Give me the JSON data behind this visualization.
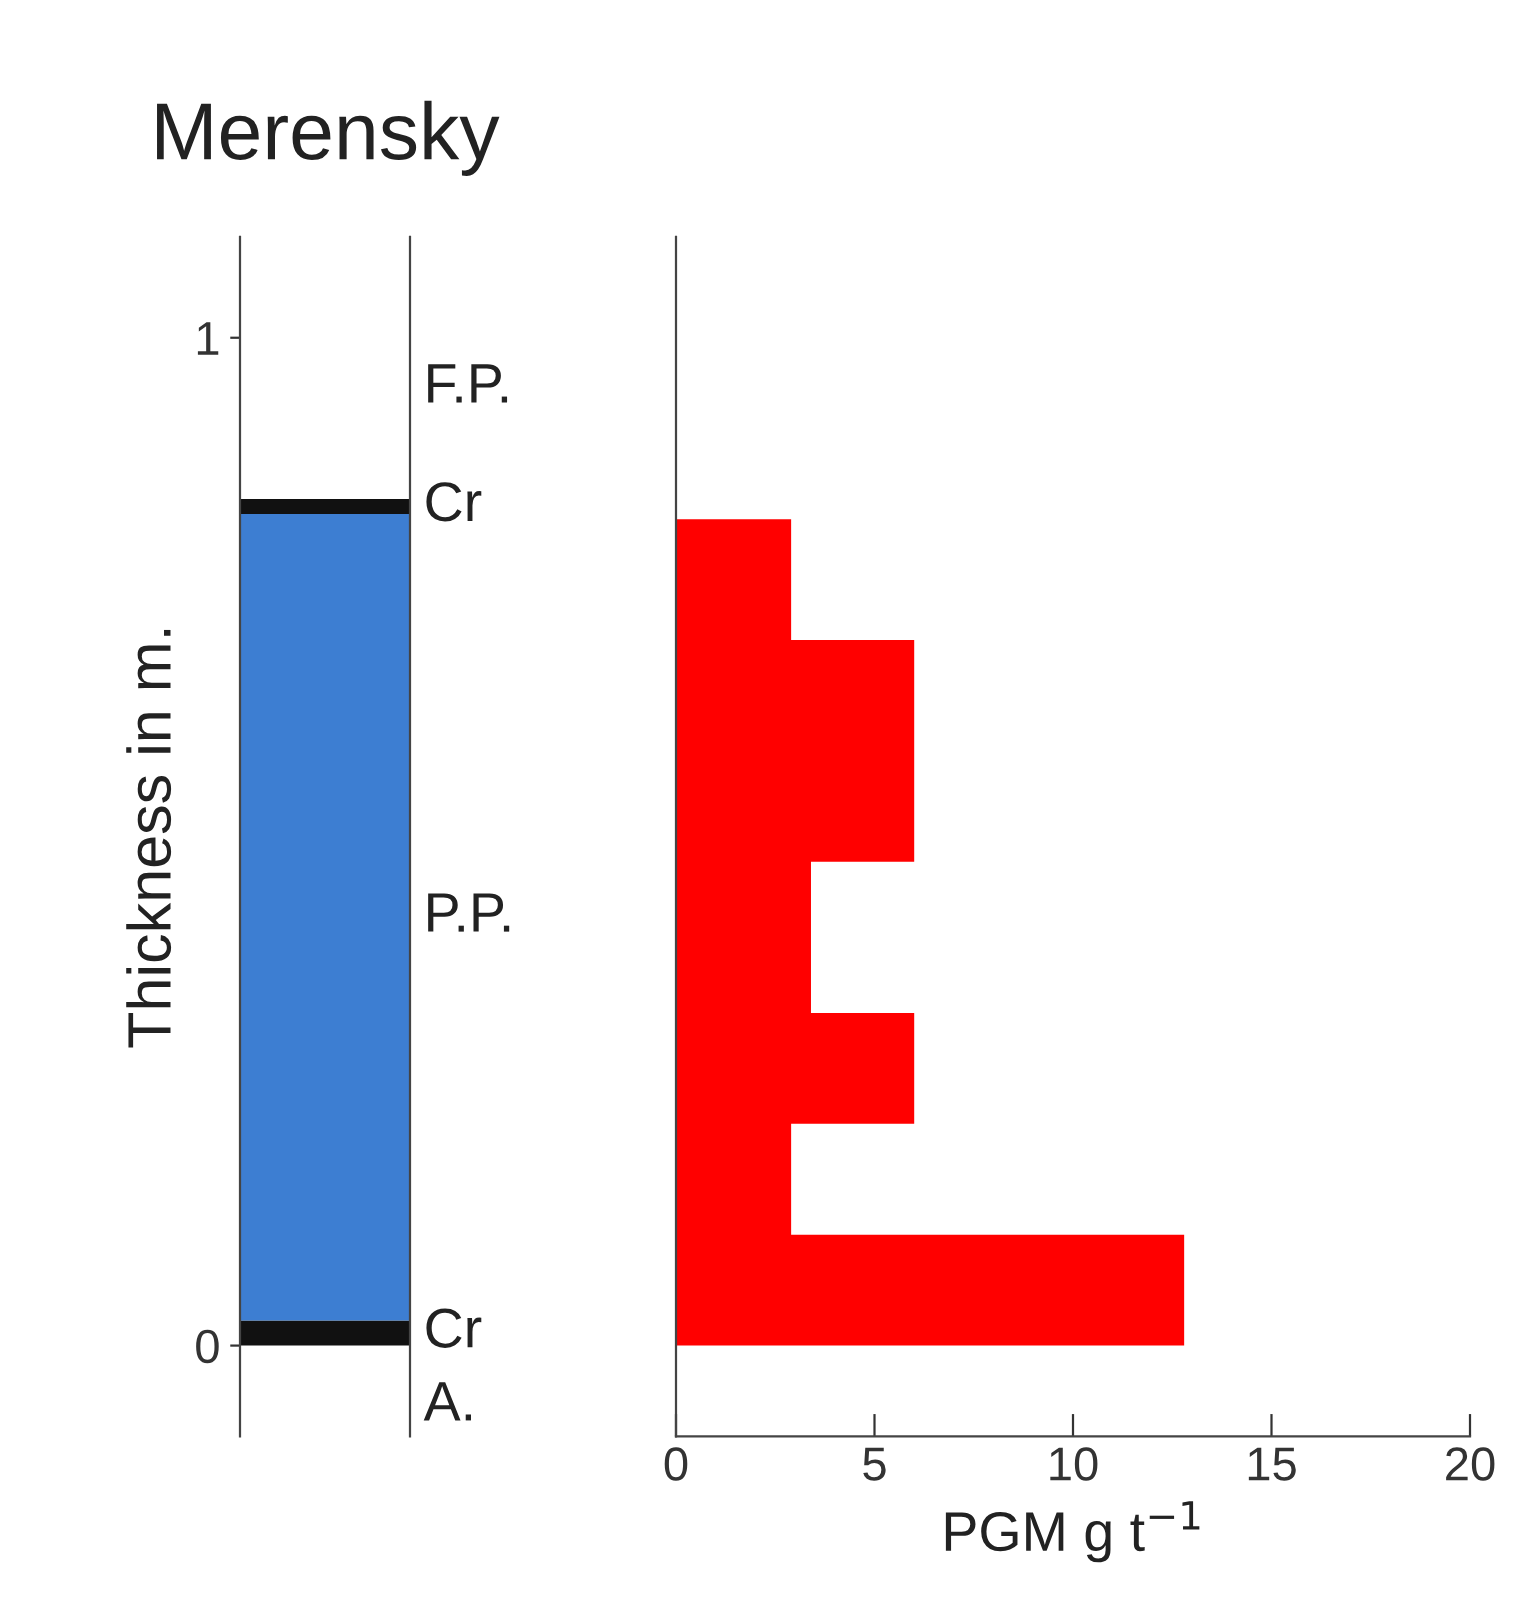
{
  "chart_data": [
    {
      "type": "bar",
      "title": "Merensky",
      "ylabel": "Thickness in m.",
      "categories": [
        null
      ],
      "stacked": true,
      "series": [
        {
          "name": "Cr",
          "color": "#111111",
          "values": [
            0.025
          ]
        },
        {
          "name": "P.P.",
          "color": "#3d7ed2",
          "values": [
            0.8
          ]
        },
        {
          "name": "Cr",
          "color": "#111111",
          "values": [
            0.015
          ]
        }
      ],
      "annotations": [
        "F.P.",
        "A."
      ],
      "ylim": [
        -0.09,
        1.1
      ],
      "yticks": [
        0,
        1
      ],
      "tick_labels": "y"
    },
    {
      "type": "histogram",
      "orientation": "horizontal",
      "xlabel": "PGM g t$^{−1}$",
      "bins": [
        0,
        0.11,
        0.22,
        0.33,
        0.48,
        0.7,
        0.82
      ],
      "values": [
        12.8,
        2.9,
        6,
        3.4,
        6,
        2.9
      ],
      "color": "#ff0000",
      "xlim": [
        0,
        20
      ],
      "xticks": [
        0,
        5,
        10,
        15,
        20
      ],
      "ylim": [
        -0.09,
        1.1
      ],
      "yticks": [
        0,
        1
      ],
      "tick_labels": "x"
    }
  ]
}
